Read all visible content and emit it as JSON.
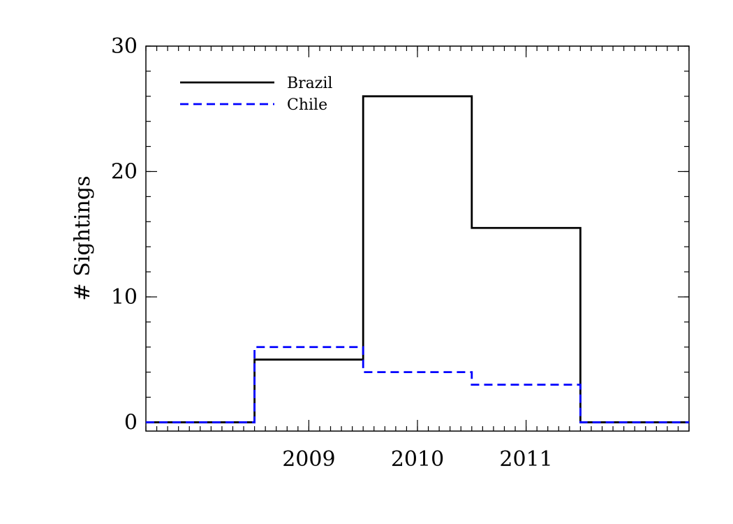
{
  "chart_data": {
    "type": "step",
    "ylabel": "# Sightings",
    "xlabel": "",
    "xlim": [
      2007.5,
      2012.5
    ],
    "ylim": [
      -0.7,
      30
    ],
    "yticks": [
      0,
      10,
      20,
      30
    ],
    "yminor_step": 2,
    "xticks": [
      2009,
      2010,
      2011
    ],
    "xtick_labels": [
      "2009",
      "2010",
      "2011"
    ],
    "xminor_step": 0.1,
    "legend_position": "top-left",
    "series": [
      {
        "name": "Brazil",
        "style": "solid",
        "color": "#000000",
        "bins": [
          {
            "x0": 2007.5,
            "x1": 2008.5,
            "y": 0
          },
          {
            "x0": 2008.5,
            "x1": 2009.5,
            "y": 5
          },
          {
            "x0": 2009.5,
            "x1": 2010.5,
            "y": 26
          },
          {
            "x0": 2010.5,
            "x1": 2011.5,
            "y": 15.5
          },
          {
            "x0": 2011.5,
            "x1": 2012.5,
            "y": 0
          }
        ]
      },
      {
        "name": "Chile",
        "style": "dashed",
        "color": "#0000ff",
        "bins": [
          {
            "x0": 2007.5,
            "x1": 2008.5,
            "y": 0
          },
          {
            "x0": 2008.5,
            "x1": 2009.5,
            "y": 6
          },
          {
            "x0": 2009.5,
            "x1": 2010.5,
            "y": 4
          },
          {
            "x0": 2010.5,
            "x1": 2011.5,
            "y": 3
          },
          {
            "x0": 2011.5,
            "x1": 2012.5,
            "y": 0
          }
        ]
      }
    ]
  }
}
